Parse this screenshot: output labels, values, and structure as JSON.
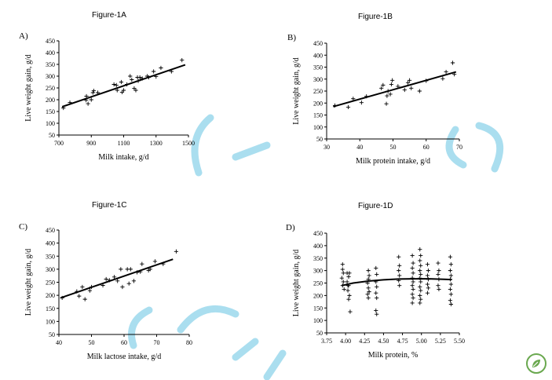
{
  "chart_data": [
    {
      "panel": "A",
      "heading": "Figure-1A",
      "letter": "A)",
      "type": "scatter",
      "xlabel": "Milk intake, g/d",
      "ylabel": "Live weight gain, g/d",
      "xlim": [
        700,
        1500
      ],
      "ylim": [
        50,
        450
      ],
      "xticks": [
        700,
        900,
        1100,
        1300,
        1500
      ],
      "yticks": [
        50,
        100,
        150,
        200,
        250,
        300,
        350,
        400,
        450
      ],
      "points": [
        [
          728,
          165
        ],
        [
          768,
          188
        ],
        [
          868,
          198
        ],
        [
          870,
          215
        ],
        [
          880,
          183
        ],
        [
          900,
          200
        ],
        [
          910,
          230
        ],
        [
          915,
          238
        ],
        [
          940,
          230
        ],
        [
          1040,
          265
        ],
        [
          1055,
          262
        ],
        [
          1060,
          240
        ],
        [
          1085,
          275
        ],
        [
          1090,
          232
        ],
        [
          1100,
          240
        ],
        [
          1120,
          265
        ],
        [
          1140,
          300
        ],
        [
          1150,
          285
        ],
        [
          1165,
          248
        ],
        [
          1175,
          240
        ],
        [
          1185,
          295
        ],
        [
          1190,
          280
        ],
        [
          1200,
          295
        ],
        [
          1215,
          290
        ],
        [
          1245,
          300
        ],
        [
          1255,
          295
        ],
        [
          1285,
          320
        ],
        [
          1300,
          298
        ],
        [
          1330,
          335
        ],
        [
          1395,
          320
        ],
        [
          1460,
          368
        ]
      ],
      "trend": [
        [
          720,
          170
        ],
        [
          1480,
          348
        ]
      ]
    },
    {
      "panel": "B",
      "heading": "Figure-1B",
      "letter": "B)",
      "type": "scatter",
      "xlabel": "Milk protein intake, g/d",
      "ylabel": "Live weight gain, g/d",
      "xlim": [
        30,
        70
      ],
      "ylim": [
        50,
        450
      ],
      "xticks": [
        30,
        40,
        50,
        60,
        70
      ],
      "yticks": [
        50,
        100,
        150,
        200,
        250,
        300,
        350,
        400,
        450
      ],
      "points": [
        [
          32.5,
          190
        ],
        [
          36.5,
          183
        ],
        [
          38,
          218
        ],
        [
          40.5,
          202
        ],
        [
          42,
          228
        ],
        [
          46.5,
          262
        ],
        [
          47,
          275
        ],
        [
          48,
          197
        ],
        [
          48.2,
          230
        ],
        [
          48.5,
          250
        ],
        [
          49.2,
          237
        ],
        [
          49.5,
          278
        ],
        [
          49.8,
          295
        ],
        [
          51.5,
          270
        ],
        [
          53.5,
          255
        ],
        [
          54.5,
          285
        ],
        [
          55,
          295
        ],
        [
          55.5,
          262
        ],
        [
          58,
          250
        ],
        [
          60,
          293
        ],
        [
          65,
          302
        ],
        [
          66,
          330
        ],
        [
          68,
          368
        ],
        [
          68.5,
          320
        ]
      ],
      "trend": [
        [
          32,
          185
        ],
        [
          69,
          330
        ]
      ]
    },
    {
      "panel": "C",
      "heading": "Figure-1C",
      "letter": "C)",
      "type": "scatter",
      "xlabel": "Milk lactose intake, g/d",
      "ylabel": "Live weight gain, g/d",
      "xlim": [
        40,
        80
      ],
      "ylim": [
        50,
        450
      ],
      "xticks": [
        40,
        50,
        60,
        70,
        80
      ],
      "yticks": [
        50,
        100,
        150,
        200,
        250,
        300,
        350,
        400,
        450
      ],
      "points": [
        [
          41,
          190
        ],
        [
          45.5,
          215
        ],
        [
          46.2,
          197
        ],
        [
          47.2,
          232
        ],
        [
          48,
          185
        ],
        [
          49.5,
          218
        ],
        [
          50,
          232
        ],
        [
          53.5,
          238
        ],
        [
          54.5,
          262
        ],
        [
          55.5,
          258
        ],
        [
          57,
          270
        ],
        [
          58,
          255
        ],
        [
          59,
          300
        ],
        [
          59.5,
          232
        ],
        [
          61,
          300
        ],
        [
          61.5,
          245
        ],
        [
          62,
          300
        ],
        [
          63,
          255
        ],
        [
          64,
          288
        ],
        [
          65,
          290
        ],
        [
          65.5,
          320
        ],
        [
          67.5,
          295
        ],
        [
          68,
          300
        ],
        [
          69.5,
          330
        ],
        [
          72,
          320
        ],
        [
          76,
          368
        ]
      ],
      "trend": [
        [
          40.5,
          190
        ],
        [
          75,
          338
        ]
      ]
    },
    {
      "panel": "D",
      "heading": "Figure-1D",
      "letter": "D)",
      "type": "scatter",
      "xlabel": "Milk protein, %",
      "ylabel": "Live weight gain, g/d",
      "xlim": [
        3.75,
        5.5
      ],
      "ylim": [
        50,
        450
      ],
      "xticks": [
        "3.75",
        "4.00",
        "4.25",
        "4.50",
        "4.75",
        "5.00",
        "5.25",
        "5.50"
      ],
      "yticks": [
        50,
        100,
        150,
        200,
        250,
        300,
        350,
        400,
        450
      ],
      "points": [
        [
          3.96,
          325
        ],
        [
          3.96,
          305
        ],
        [
          3.97,
          290
        ],
        [
          3.95,
          270
        ],
        [
          3.97,
          255
        ],
        [
          3.96,
          240
        ],
        [
          3.98,
          225
        ],
        [
          4.02,
          290
        ],
        [
          4.04,
          275
        ],
        [
          4.02,
          255
        ],
        [
          4.04,
          240
        ],
        [
          4.03,
          220
        ],
        [
          4.05,
          200
        ],
        [
          4.06,
          135
        ],
        [
          4.04,
          185
        ],
        [
          4.03,
          240
        ],
        [
          4.05,
          290
        ],
        [
          4.3,
          300
        ],
        [
          4.31,
          280
        ],
        [
          4.3,
          265
        ],
        [
          4.29,
          250
        ],
        [
          4.3,
          230
        ],
        [
          4.31,
          215
        ],
        [
          4.29,
          205
        ],
        [
          4.3,
          190
        ],
        [
          4.4,
          310
        ],
        [
          4.41,
          285
        ],
        [
          4.4,
          255
        ],
        [
          4.41,
          235
        ],
        [
          4.4,
          210
        ],
        [
          4.41,
          190
        ],
        [
          4.4,
          140
        ],
        [
          4.41,
          125
        ],
        [
          4.7,
          355
        ],
        [
          4.71,
          320
        ],
        [
          4.7,
          300
        ],
        [
          4.71,
          280
        ],
        [
          4.7,
          260
        ],
        [
          4.71,
          240
        ],
        [
          4.88,
          360
        ],
        [
          4.89,
          330
        ],
        [
          4.88,
          310
        ],
        [
          4.89,
          290
        ],
        [
          4.88,
          270
        ],
        [
          4.89,
          255
        ],
        [
          4.88,
          240
        ],
        [
          4.89,
          225
        ],
        [
          4.88,
          205
        ],
        [
          4.89,
          190
        ],
        [
          4.88,
          170
        ],
        [
          4.98,
          385
        ],
        [
          4.99,
          360
        ],
        [
          4.98,
          340
        ],
        [
          4.99,
          320
        ],
        [
          4.98,
          300
        ],
        [
          4.99,
          285
        ],
        [
          4.98,
          270
        ],
        [
          4.99,
          255
        ],
        [
          4.98,
          235
        ],
        [
          4.99,
          220
        ],
        [
          4.98,
          200
        ],
        [
          4.99,
          185
        ],
        [
          4.98,
          170
        ],
        [
          5.08,
          325
        ],
        [
          5.09,
          300
        ],
        [
          5.08,
          280
        ],
        [
          5.09,
          265
        ],
        [
          5.08,
          245
        ],
        [
          5.09,
          230
        ],
        [
          5.08,
          210
        ],
        [
          5.22,
          330
        ],
        [
          5.23,
          300
        ],
        [
          5.22,
          285
        ],
        [
          5.23,
          265
        ],
        [
          5.22,
          240
        ],
        [
          5.23,
          225
        ],
        [
          5.38,
          355
        ],
        [
          5.39,
          325
        ],
        [
          5.38,
          300
        ],
        [
          5.39,
          280
        ],
        [
          5.38,
          265
        ],
        [
          5.39,
          245
        ],
        [
          5.38,
          225
        ],
        [
          5.39,
          205
        ],
        [
          5.38,
          180
        ],
        [
          5.39,
          165
        ]
      ],
      "trend": [
        [
          3.95,
          240
        ],
        [
          4.1,
          250
        ],
        [
          4.3,
          258
        ],
        [
          4.5,
          263
        ],
        [
          4.7,
          266
        ],
        [
          4.9,
          267
        ],
        [
          5.1,
          267
        ],
        [
          5.3,
          265
        ],
        [
          5.4,
          264
        ]
      ]
    }
  ]
}
